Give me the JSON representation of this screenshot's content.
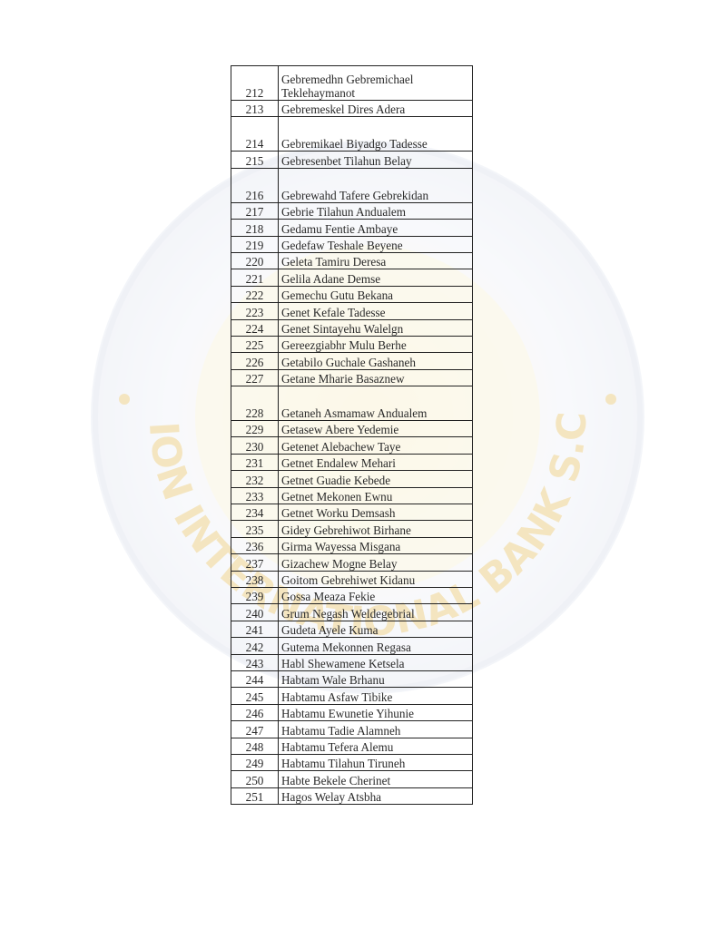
{
  "watermark": {
    "text": "LION INTERNATIONAL BANK S.C.",
    "color": "#d9a520"
  },
  "table": {
    "rows": [
      {
        "no": "212",
        "name": "Gebremedhn Gebremichael Teklehaymanot",
        "tall": true
      },
      {
        "no": "213",
        "name": "Gebremeskel Dires Adera"
      },
      {
        "no": "214",
        "name": "Gebremikael Biyadgo Tadesse",
        "tall": true
      },
      {
        "no": "215",
        "name": "Gebresenbet Tilahun Belay"
      },
      {
        "no": "216",
        "name": "Gebrewahd Tafere Gebrekidan",
        "tall": true
      },
      {
        "no": "217",
        "name": "Gebrie Tilahun Andualem"
      },
      {
        "no": "218",
        "name": "Gedamu Fentie Ambaye"
      },
      {
        "no": "219",
        "name": "Gedefaw Teshale Beyene"
      },
      {
        "no": "220",
        "name": "Geleta Tamiru Deresa"
      },
      {
        "no": "221",
        "name": "Gelila Adane Demse"
      },
      {
        "no": "222",
        "name": "Gemechu Gutu Bekana"
      },
      {
        "no": "223",
        "name": "Genet Kefale Tadesse"
      },
      {
        "no": "224",
        "name": "Genet Sintayehu Walelgn"
      },
      {
        "no": "225",
        "name": "Gereezgiabhr Mulu Berhe"
      },
      {
        "no": "226",
        "name": "Getabilo Guchale Gashaneh"
      },
      {
        "no": "227",
        "name": "Getane Mharie Basaznew"
      },
      {
        "no": "228",
        "name": "Getaneh Asmamaw Andualem",
        "tall": true
      },
      {
        "no": "229",
        "name": "Getasew Abere Yedemie"
      },
      {
        "no": "230",
        "name": "Getenet Alebachew Taye"
      },
      {
        "no": "231",
        "name": "Getnet Endalew Mehari"
      },
      {
        "no": "232",
        "name": " Getnet Guadie Kebede"
      },
      {
        "no": "233",
        "name": "Getnet Mekonen Ewnu"
      },
      {
        "no": "234",
        "name": "Getnet Worku Demsash"
      },
      {
        "no": "235",
        "name": "Gidey Gebrehiwot Birhane"
      },
      {
        "no": "236",
        "name": "Girma Wayessa Misgana"
      },
      {
        "no": "237",
        "name": "Gizachew Mogne Belay"
      },
      {
        "no": "238",
        "name": "Goitom Gebrehiwet Kidanu"
      },
      {
        "no": "239",
        "name": "Gossa Meaza Fekie"
      },
      {
        "no": "240",
        "name": "Grum Negash Weldegebrial"
      },
      {
        "no": "241",
        "name": "Gudeta Ayele Kuma"
      },
      {
        "no": "242",
        "name": "Gutema Mekonnen Regasa"
      },
      {
        "no": "243",
        "name": "Habl Shewamene Ketsela"
      },
      {
        "no": "244",
        "name": "Habtam Wale Brhanu"
      },
      {
        "no": "245",
        "name": "Habtamu Asfaw Tibike"
      },
      {
        "no": "246",
        "name": "Habtamu Ewunetie Yihunie"
      },
      {
        "no": "247",
        "name": "Habtamu Tadie Alamneh"
      },
      {
        "no": "248",
        "name": "Habtamu Tefera Alemu"
      },
      {
        "no": "249",
        "name": "Habtamu Tilahun Tiruneh"
      },
      {
        "no": "250",
        "name": "Habte Bekele Cherinet"
      },
      {
        "no": "251",
        "name": "Hagos Welay Atsbha"
      }
    ]
  }
}
